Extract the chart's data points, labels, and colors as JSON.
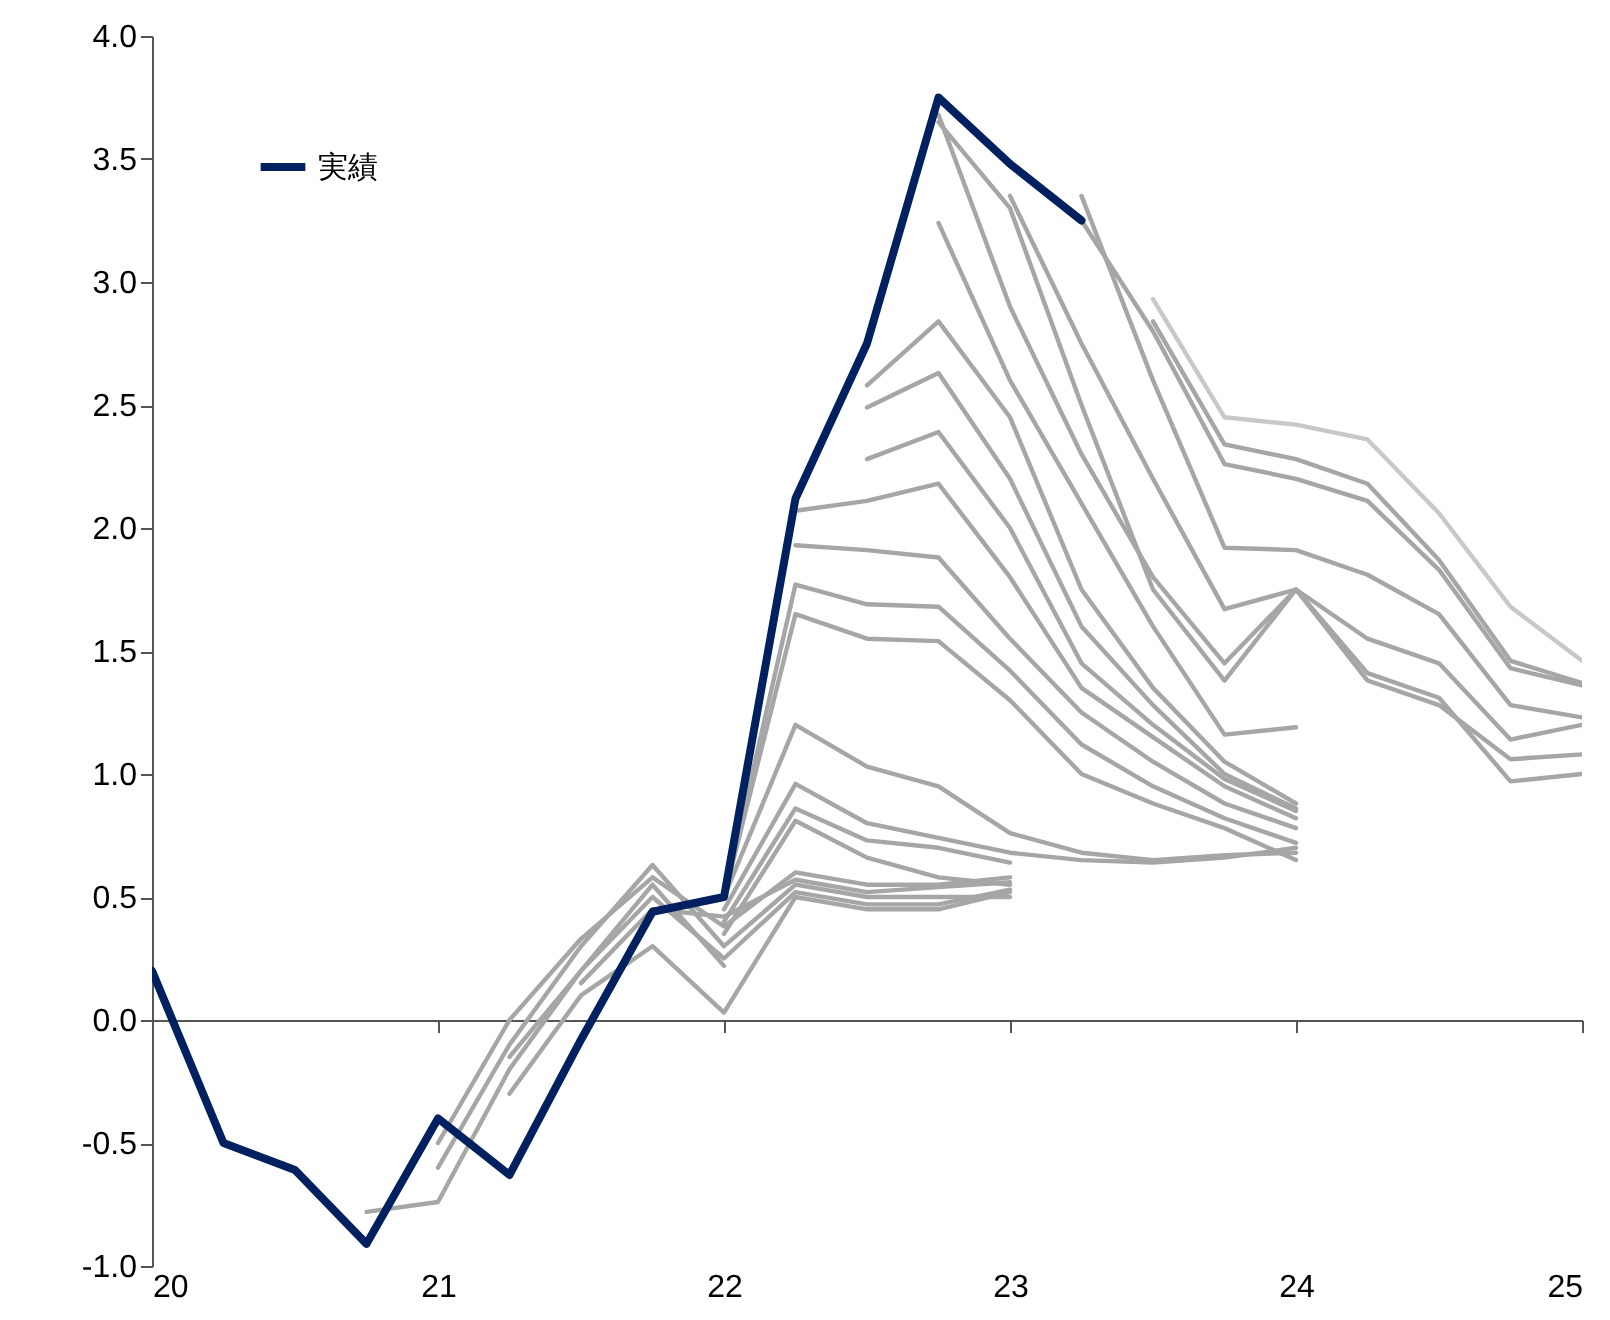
{
  "chart_data": {
    "type": "line",
    "legend": "top left",
    "line_style": "solid",
    "xlim": [
      20,
      25
    ],
    "xticks": [
      20,
      21,
      22,
      23,
      24,
      25
    ],
    "ylim": [
      -1,
      4
    ],
    "yticks": [
      {
        "value": -1,
        "label": "-1.0"
      },
      {
        "value": -0.5,
        "label": "-0.5"
      },
      {
        "value": 0,
        "label": "0.0"
      },
      {
        "value": 0.5,
        "label": "0.5"
      },
      {
        "value": 1,
        "label": "1.0"
      },
      {
        "value": 1.5,
        "label": "1.5"
      },
      {
        "value": 2,
        "label": "2.0"
      },
      {
        "value": 2.5,
        "label": "2.5"
      },
      {
        "value": 3,
        "label": "3.0"
      },
      {
        "value": 3.5,
        "label": "3.5"
      },
      {
        "value": 4,
        "label": "4.0"
      }
    ],
    "series": [
      {
        "color": "#a6a6a6",
        "x": [
          20.75,
          21,
          21.25,
          21.5,
          21.75,
          22
        ],
        "values": [
          -0.78,
          -0.74,
          -0.2,
          0.2,
          0.55,
          0.22
        ]
      },
      {
        "color": "#a6a6a6",
        "x": [
          21,
          21.25,
          21.5,
          21.75,
          22,
          22.25,
          22.5,
          22.75,
          23
        ],
        "values": [
          -0.6,
          -0.1,
          0.3,
          0.63,
          0.3,
          0.55,
          0.5,
          0.5,
          0.5
        ]
      },
      {
        "color": "#a6a6a6",
        "x": [
          21,
          21.25,
          21.5,
          21.75,
          22,
          22.25,
          22.5,
          22.75,
          23
        ],
        "values": [
          -0.5,
          0,
          0.33,
          0.58,
          0.38,
          0.6,
          0.55,
          0.55,
          0.58
        ]
      },
      {
        "color": "#a6a6a6",
        "x": [
          21.25,
          21.5,
          21.75,
          22,
          22.25,
          22.5,
          22.75,
          23
        ],
        "values": [
          -0.15,
          0.2,
          0.5,
          0.25,
          0.52,
          0.47,
          0.47,
          0.53
        ]
      },
      {
        "color": "#a6a6a6",
        "x": [
          21.25,
          21.5,
          21.75,
          22,
          22.25,
          22.5,
          22.75,
          23
        ],
        "values": [
          -0.3,
          0.1,
          0.3,
          0.03,
          0.5,
          0.45,
          0.45,
          0.52
        ]
      },
      {
        "color": "#a6a6a6",
        "x": [
          21.5,
          21.75,
          22,
          22.25,
          22.5,
          22.75,
          23
        ],
        "values": [
          0.15,
          0.45,
          0.42,
          0.57,
          0.52,
          0.54,
          0.56
        ]
      },
      {
        "color": "#a6a6a6",
        "x": [
          22,
          22.25,
          22.5,
          22.75,
          23
        ],
        "values": [
          0.35,
          0.81,
          0.66,
          0.58,
          0.55
        ]
      },
      {
        "color": "#a6a6a6",
        "x": [
          22,
          22.25,
          22.5,
          22.75,
          23
        ],
        "values": [
          0.4,
          0.86,
          0.73,
          0.7,
          0.64
        ]
      },
      {
        "color": "#a6a6a6",
        "x": [
          22,
          22.25,
          22.5,
          22.75,
          23,
          23.25,
          23.5,
          23.75,
          24
        ],
        "values": [
          0.45,
          0.96,
          0.8,
          0.74,
          0.68,
          0.65,
          0.64,
          0.66,
          0.7
        ]
      },
      {
        "color": "#a6a6a6",
        "x": [
          22,
          22.25,
          22.5,
          22.75,
          23,
          23.25,
          23.5,
          23.75,
          24
        ],
        "values": [
          0.5,
          1.2,
          1.03,
          0.95,
          0.76,
          0.68,
          0.65,
          0.67,
          0.68
        ]
      },
      {
        "color": "#a6a6a6",
        "x": [
          22,
          22.25,
          22.5,
          22.75,
          23,
          23.25,
          23.5,
          23.75,
          24
        ],
        "values": [
          0.5,
          1.65,
          1.55,
          1.54,
          1.3,
          1,
          0.88,
          0.78,
          0.65
        ]
      },
      {
        "color": "#a6a6a6",
        "x": [
          22,
          22.25,
          22.5,
          22.75,
          23,
          23.25,
          23.5,
          23.75,
          24
        ],
        "values": [
          0.5,
          1.77,
          1.69,
          1.68,
          1.42,
          1.12,
          0.95,
          0.82,
          0.72
        ]
      },
      {
        "color": "#a6a6a6",
        "x": [
          22.25,
          22.5,
          22.75,
          23,
          23.25,
          23.5,
          23.75,
          24
        ],
        "values": [
          1.93,
          1.91,
          1.88,
          1.55,
          1.25,
          1.05,
          0.88,
          0.78
        ]
      },
      {
        "color": "#a6a6a6",
        "x": [
          22.25,
          22.5,
          22.75,
          23,
          23.25,
          23.5,
          23.75,
          24
        ],
        "values": [
          2.07,
          2.11,
          2.18,
          1.8,
          1.35,
          1.15,
          0.95,
          0.82
        ]
      },
      {
        "color": "#a6a6a6",
        "x": [
          22.5,
          22.75,
          23,
          23.25,
          23.5,
          23.75,
          24
        ],
        "values": [
          2.28,
          2.39,
          2,
          1.45,
          1.2,
          0.98,
          0.85
        ]
      },
      {
        "color": "#a6a6a6",
        "x": [
          22.5,
          22.75,
          23,
          23.25,
          23.5,
          23.75,
          24
        ],
        "values": [
          2.49,
          2.63,
          2.2,
          1.6,
          1.28,
          1,
          0.86
        ]
      },
      {
        "color": "#a6a6a6",
        "x": [
          22.5,
          22.75,
          23,
          23.25,
          23.5,
          23.75,
          24
        ],
        "values": [
          2.58,
          2.84,
          2.45,
          1.75,
          1.35,
          1.05,
          0.88
        ]
      },
      {
        "color": "#a6a6a6",
        "x": [
          22.75,
          23,
          23.25,
          23.5,
          23.75,
          24
        ],
        "values": [
          3.24,
          2.6,
          2.1,
          1.6,
          1.16,
          1.19
        ]
      },
      {
        "color": "#a6a6a6",
        "x": [
          22.75,
          23,
          23.25,
          23.5,
          23.75,
          24,
          24.25,
          24.5,
          24.75,
          25
        ],
        "values": [
          3.68,
          2.9,
          2.3,
          1.8,
          1.45,
          1.75,
          1.41,
          1.31,
          0.97,
          1
        ]
      },
      {
        "color": "#a6a6a6",
        "x": [
          22.75,
          23,
          23.25,
          23.5,
          23.75,
          24,
          24.25,
          24.5,
          24.75,
          25
        ],
        "values": [
          3.65,
          3.3,
          2.5,
          1.75,
          1.38,
          1.75,
          1.38,
          1.28,
          1.06,
          1.08
        ]
      },
      {
        "color": "#a6a6a6",
        "x": [
          23,
          23.25,
          23.5,
          23.75,
          24,
          24.25,
          24.5,
          24.75,
          25
        ],
        "values": [
          3.35,
          2.75,
          2.2,
          1.67,
          1.75,
          1.55,
          1.45,
          1.14,
          1.2
        ]
      },
      {
        "color": "#a6a6a6",
        "x": [
          23.25,
          23.5,
          23.75,
          24,
          24.25,
          24.5,
          24.75,
          25
        ],
        "values": [
          3.35,
          2.6,
          1.92,
          1.91,
          1.81,
          1.65,
          1.28,
          1.23
        ]
      },
      {
        "color": "#a6a6a6",
        "x": [
          23.25,
          23.5,
          23.75,
          24,
          24.25,
          24.5,
          24.75,
          25
        ],
        "values": [
          3.25,
          2.8,
          2.26,
          2.2,
          2.11,
          1.83,
          1.43,
          1.36
        ]
      },
      {
        "color": "#a6a6a6",
        "x": [
          23.5,
          23.75,
          24,
          24.25,
          24.5,
          24.75,
          25
        ],
        "values": [
          2.84,
          2.34,
          2.28,
          2.18,
          1.87,
          1.46,
          1.37
        ]
      },
      {
        "color": "#c8c8c8",
        "x": [
          23.5,
          23.75,
          24,
          24.25,
          24.5,
          24.75,
          25
        ],
        "values": [
          2.93,
          2.45,
          2.42,
          2.36,
          2.06,
          1.68,
          1.46
        ]
      },
      {
        "name": "実績",
        "color": "#002060",
        "x": [
          20,
          20.25,
          20.5,
          20.75,
          21,
          21.25,
          21.5,
          21.75,
          22,
          22.25,
          22.5,
          22.75,
          23,
          23.25
        ],
        "values": [
          0.2,
          -0.5,
          -0.61,
          -0.91,
          -0.4,
          -0.63,
          -0.08,
          0.44,
          0.5,
          2.12,
          2.75,
          3.75,
          3.48,
          3.25
        ]
      }
    ]
  }
}
